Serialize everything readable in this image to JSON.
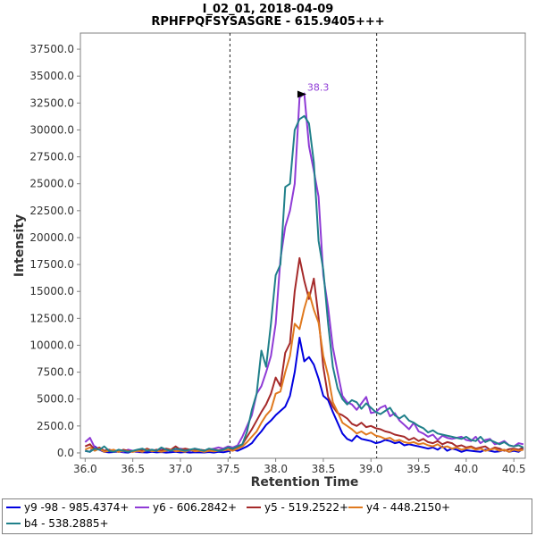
{
  "chart_data": {
    "type": "line",
    "title": [
      "I_02_01, 2018-04-09",
      "RPHFPQFSYSASGRE - 615.9405+++"
    ],
    "xlabel": "Retention Time",
    "ylabel": "Intensity",
    "xlim": [
      35.95,
      40.62
    ],
    "ylim": [
      -500,
      39000
    ],
    "x_ticks": [
      "36.0",
      "36.5",
      "37.0",
      "37.5",
      "38.0",
      "38.5",
      "39.0",
      "39.5",
      "40.0",
      "40.5"
    ],
    "y_ticks": [
      "0.0",
      "2500.0",
      "5000.0",
      "7500.0",
      "10000.0",
      "12500.0",
      "15000.0",
      "17500.0",
      "20000.0",
      "22500.0",
      "25000.0",
      "27500.0",
      "30000.0",
      "32500.0",
      "35000.0",
      "37500.0"
    ],
    "integration_bounds": [
      37.52,
      39.06
    ],
    "peak_annotation": {
      "label": "38.3",
      "x": 38.35,
      "y": 33400,
      "color": "#8f3bd6"
    },
    "legend_position": "bottom",
    "series": [
      {
        "name": "y9 -98 - 985.4374+",
        "color": "#0000e0",
        "x": [
          36.0,
          36.05,
          36.1,
          36.15,
          36.2,
          36.25,
          36.3,
          36.35,
          36.4,
          36.45,
          36.5,
          36.55,
          36.6,
          36.65,
          36.7,
          36.75,
          36.8,
          36.85,
          36.9,
          36.95,
          37.0,
          37.05,
          37.1,
          37.15,
          37.2,
          37.25,
          37.3,
          37.35,
          37.4,
          37.45,
          37.5,
          37.55,
          37.6,
          37.65,
          37.7,
          37.75,
          37.8,
          37.85,
          37.9,
          37.95,
          38.0,
          38.05,
          38.1,
          38.15,
          38.2,
          38.25,
          38.3,
          38.35,
          38.4,
          38.45,
          38.5,
          38.55,
          38.6,
          38.65,
          38.7,
          38.75,
          38.8,
          38.85,
          38.9,
          38.95,
          39.0,
          39.05,
          39.1,
          39.15,
          39.2,
          39.25,
          39.3,
          39.35,
          39.4,
          39.45,
          39.5,
          39.55,
          39.6,
          39.65,
          39.7,
          39.75,
          39.8,
          39.85,
          39.9,
          39.95,
          40.0,
          40.05,
          40.1,
          40.15,
          40.2,
          40.25,
          40.3,
          40.35,
          40.4,
          40.45,
          40.5,
          40.55,
          40.6
        ],
        "values": [
          200,
          100,
          600,
          300,
          100,
          50,
          80,
          120,
          60,
          30,
          150,
          80,
          60,
          40,
          100,
          50,
          80,
          30,
          60,
          100,
          40,
          80,
          30,
          60,
          50,
          40,
          80,
          30,
          100,
          60,
          150,
          300,
          200,
          400,
          600,
          900,
          1500,
          2000,
          2600,
          3000,
          3500,
          3900,
          4300,
          5300,
          7500,
          10700,
          8500,
          8900,
          8200,
          6900,
          5300,
          4900,
          3800,
          2800,
          1800,
          1300,
          1100,
          1600,
          1300,
          1200,
          1100,
          900,
          1000,
          1200,
          1100,
          900,
          1000,
          700,
          800,
          700,
          600,
          500,
          400,
          500,
          300,
          600,
          200,
          400,
          300,
          100,
          250,
          200,
          150,
          100,
          300,
          200,
          100,
          150,
          300,
          100,
          200,
          100,
          400
        ]
      },
      {
        "name": "y6 - 606.2842+",
        "color": "#8f3bd6",
        "x": [
          36.0,
          36.05,
          36.1,
          36.15,
          36.2,
          36.25,
          36.3,
          36.35,
          36.4,
          36.45,
          36.5,
          36.55,
          36.6,
          36.65,
          36.7,
          36.75,
          36.8,
          36.85,
          36.9,
          36.95,
          37.0,
          37.05,
          37.1,
          37.15,
          37.2,
          37.25,
          37.3,
          37.35,
          37.4,
          37.45,
          37.5,
          37.55,
          37.6,
          37.65,
          37.7,
          37.75,
          37.8,
          37.85,
          37.9,
          37.95,
          38.0,
          38.05,
          38.1,
          38.15,
          38.2,
          38.25,
          38.3,
          38.35,
          38.4,
          38.45,
          38.5,
          38.55,
          38.6,
          38.65,
          38.7,
          38.75,
          38.8,
          38.85,
          38.9,
          38.95,
          39.0,
          39.05,
          39.1,
          39.15,
          39.2,
          39.25,
          39.3,
          39.35,
          39.4,
          39.45,
          39.5,
          39.55,
          39.6,
          39.65,
          39.7,
          39.75,
          39.8,
          39.85,
          39.9,
          39.95,
          40.0,
          40.05,
          40.1,
          40.15,
          40.2,
          40.25,
          40.3,
          40.35,
          40.4,
          40.45,
          40.5,
          40.55,
          40.6
        ],
        "values": [
          1000,
          1400,
          500,
          300,
          200,
          300,
          100,
          200,
          100,
          300,
          200,
          100,
          300,
          200,
          300,
          200,
          400,
          300,
          200,
          300,
          400,
          300,
          200,
          400,
          300,
          200,
          300,
          400,
          500,
          400,
          600,
          500,
          700,
          1500,
          2500,
          3500,
          5500,
          6200,
          7500,
          9000,
          12000,
          18000,
          21000,
          22500,
          25000,
          33000,
          33400,
          28500,
          26200,
          23800,
          16500,
          13500,
          9800,
          7500,
          5300,
          4700,
          4500,
          4000,
          4600,
          5200,
          3700,
          3800,
          4200,
          4400,
          3400,
          3700,
          3000,
          2600,
          2200,
          2800,
          2000,
          1800,
          1500,
          1700,
          1200,
          1600,
          1400,
          1300,
          1400,
          1500,
          1200,
          1100,
          1500,
          900,
          1200,
          1300,
          800,
          900,
          1100,
          700,
          600,
          900,
          800
        ]
      },
      {
        "name": "y5 - 519.2522+",
        "color": "#a52a2a",
        "x": [
          36.0,
          36.05,
          36.1,
          36.15,
          36.2,
          36.25,
          36.3,
          36.35,
          36.4,
          36.45,
          36.5,
          36.55,
          36.6,
          36.65,
          36.7,
          36.75,
          36.8,
          36.85,
          36.9,
          36.95,
          37.0,
          37.05,
          37.1,
          37.15,
          37.2,
          37.25,
          37.3,
          37.35,
          37.4,
          37.45,
          37.5,
          37.55,
          37.6,
          37.65,
          37.7,
          37.75,
          37.8,
          37.85,
          37.9,
          37.95,
          38.0,
          38.05,
          38.1,
          38.15,
          38.2,
          38.25,
          38.3,
          38.35,
          38.4,
          38.45,
          38.5,
          38.55,
          38.6,
          38.65,
          38.7,
          38.75,
          38.8,
          38.85,
          38.9,
          38.95,
          39.0,
          39.05,
          39.1,
          39.15,
          39.2,
          39.25,
          39.3,
          39.35,
          39.4,
          39.45,
          39.5,
          39.55,
          39.6,
          39.65,
          39.7,
          39.75,
          39.8,
          39.85,
          39.9,
          39.95,
          40.0,
          40.05,
          40.1,
          40.15,
          40.2,
          40.25,
          40.3,
          40.35,
          40.4,
          40.45,
          40.5,
          40.55,
          40.6
        ],
        "values": [
          600,
          800,
          300,
          500,
          200,
          300,
          200,
          100,
          300,
          200,
          100,
          300,
          200,
          400,
          200,
          300,
          200,
          400,
          300,
          600,
          300,
          400,
          300,
          200,
          300,
          250,
          200,
          300,
          250,
          300,
          300,
          400,
          500,
          800,
          1500,
          2200,
          3000,
          3800,
          4500,
          5500,
          7000,
          6200,
          9300,
          10200,
          15000,
          18100,
          16000,
          14300,
          16200,
          12600,
          8000,
          5200,
          4300,
          3700,
          3500,
          3200,
          2700,
          2500,
          2800,
          2400,
          2500,
          2300,
          2200,
          2000,
          1900,
          1700,
          1600,
          1500,
          1200,
          1400,
          1100,
          1300,
          1000,
          900,
          1100,
          800,
          1000,
          900,
          600,
          700,
          500,
          600,
          400,
          500,
          600,
          300,
          500,
          400,
          200,
          350,
          400,
          300,
          500
        ]
      },
      {
        "name": "y4 - 448.2150+",
        "color": "#e07a1f",
        "x": [
          36.0,
          36.05,
          36.1,
          36.15,
          36.2,
          36.25,
          36.3,
          36.35,
          36.4,
          36.45,
          36.5,
          36.55,
          36.6,
          36.65,
          36.7,
          36.75,
          36.8,
          36.85,
          36.9,
          36.95,
          37.0,
          37.05,
          37.1,
          37.15,
          37.2,
          37.25,
          37.3,
          37.35,
          37.4,
          37.45,
          37.5,
          37.55,
          37.6,
          37.65,
          37.7,
          37.75,
          37.8,
          37.85,
          37.9,
          37.95,
          38.0,
          38.05,
          38.1,
          38.15,
          38.2,
          38.25,
          38.3,
          38.35,
          38.4,
          38.45,
          38.5,
          38.55,
          38.6,
          38.65,
          38.7,
          38.75,
          38.8,
          38.85,
          38.9,
          38.95,
          39.0,
          39.05,
          39.1,
          39.15,
          39.2,
          39.25,
          39.3,
          39.35,
          39.4,
          39.45,
          39.5,
          39.55,
          39.6,
          39.65,
          39.7,
          39.75,
          39.8,
          39.85,
          39.9,
          39.95,
          40.0,
          40.05,
          40.1,
          40.15,
          40.2,
          40.25,
          40.3,
          40.35,
          40.4,
          40.45,
          40.5,
          40.55,
          40.6
        ],
        "values": [
          300,
          500,
          200,
          400,
          100,
          200,
          300,
          100,
          200,
          150,
          100,
          200,
          100,
          300,
          150,
          200,
          100,
          200,
          300,
          150,
          200,
          100,
          300,
          150,
          200,
          100,
          200,
          150,
          200,
          250,
          300,
          200,
          400,
          600,
          1000,
          1500,
          2000,
          2800,
          3500,
          4000,
          5500,
          5700,
          7500,
          9000,
          12000,
          11500,
          13400,
          14900,
          13300,
          12100,
          9000,
          7200,
          4700,
          3800,
          2800,
          2500,
          2200,
          1800,
          2000,
          1700,
          1900,
          1600,
          1500,
          1300,
          1400,
          1100,
          1200,
          1000,
          900,
          1000,
          800,
          900,
          700,
          600,
          800,
          500,
          600,
          400,
          500,
          300,
          400,
          500,
          300,
          400,
          200,
          300,
          400,
          200,
          300,
          100,
          300,
          200,
          300
        ]
      },
      {
        "name": "b4 - 538.2885+",
        "color": "#20808a",
        "x": [
          36.0,
          36.05,
          36.1,
          36.15,
          36.2,
          36.25,
          36.3,
          36.35,
          36.4,
          36.45,
          36.5,
          36.55,
          36.6,
          36.65,
          36.7,
          36.75,
          36.8,
          36.85,
          36.9,
          36.95,
          37.0,
          37.05,
          37.1,
          37.15,
          37.2,
          37.25,
          37.3,
          37.35,
          37.4,
          37.45,
          37.5,
          37.55,
          37.6,
          37.65,
          37.7,
          37.75,
          37.8,
          37.85,
          37.9,
          37.95,
          38.0,
          38.05,
          38.1,
          38.15,
          38.2,
          38.25,
          38.3,
          38.35,
          38.4,
          38.45,
          38.5,
          38.55,
          38.6,
          38.65,
          38.7,
          38.75,
          38.8,
          38.85,
          38.9,
          38.95,
          39.0,
          39.05,
          39.1,
          39.15,
          39.2,
          39.25,
          39.3,
          39.35,
          39.4,
          39.45,
          39.5,
          39.55,
          39.6,
          39.65,
          39.7,
          39.75,
          39.8,
          39.85,
          39.9,
          39.95,
          40.0,
          40.05,
          40.1,
          40.15,
          40.2,
          40.25,
          40.3,
          40.35,
          40.4,
          40.45,
          40.5,
          40.55,
          40.6
        ],
        "values": [
          200,
          100,
          400,
          300,
          600,
          200,
          100,
          300,
          200,
          100,
          200,
          300,
          400,
          200,
          300,
          200,
          500,
          300,
          200,
          400,
          300,
          200,
          300,
          400,
          300,
          200,
          400,
          300,
          200,
          300,
          500,
          400,
          600,
          800,
          2000,
          4000,
          5500,
          9500,
          8000,
          12000,
          16500,
          17500,
          24700,
          25000,
          30000,
          31000,
          31300,
          30600,
          27000,
          19700,
          17000,
          12000,
          8000,
          6000,
          5000,
          4500,
          4900,
          4700,
          4100,
          4600,
          4200,
          3800,
          3600,
          3900,
          4200,
          3500,
          3200,
          3500,
          3000,
          2800,
          2500,
          2300,
          1900,
          2100,
          1800,
          1700,
          1600,
          1500,
          1400,
          1300,
          1500,
          1200,
          1100,
          1500,
          1000,
          1200,
          1000,
          800,
          1000,
          700,
          600,
          700,
          500
        ]
      }
    ]
  }
}
